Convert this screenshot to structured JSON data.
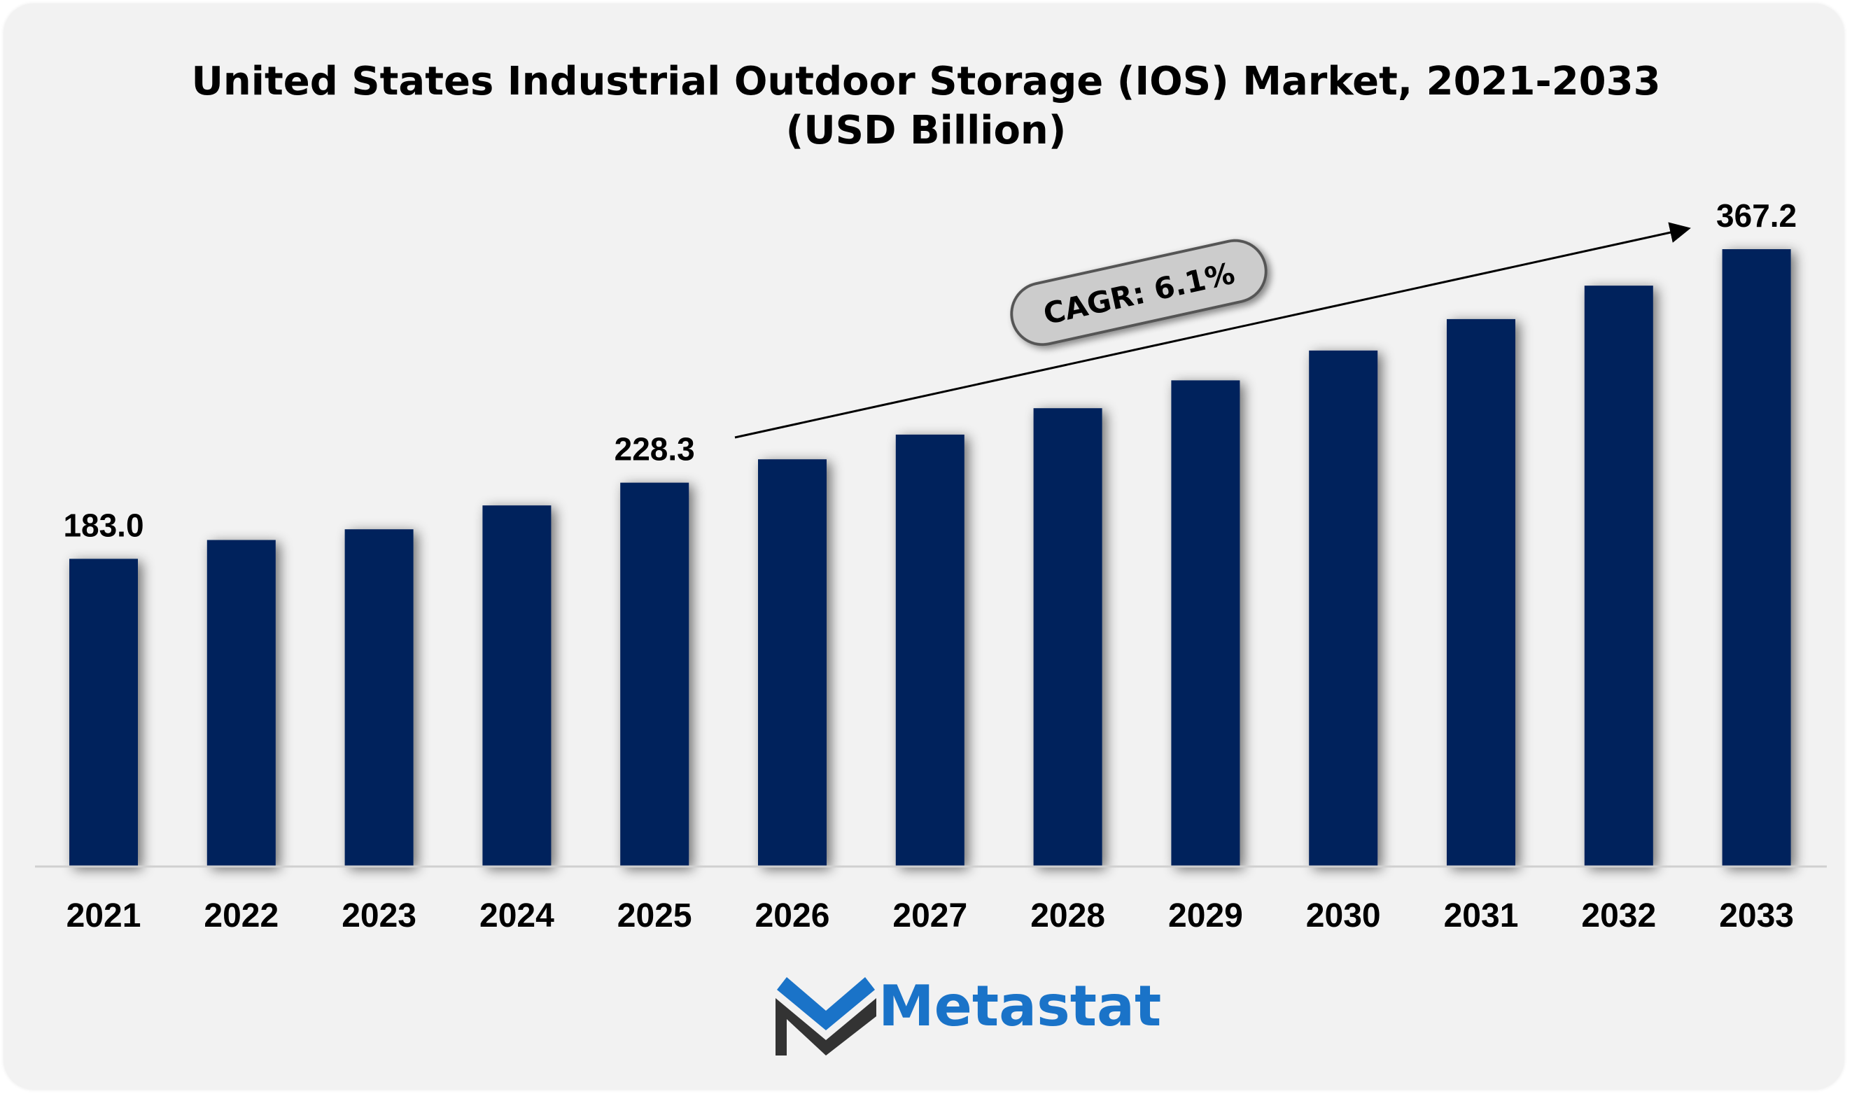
{
  "chart_data": {
    "type": "bar",
    "title": "United States Industrial Outdoor Storage (IOS) Market, 2021-2033",
    "subtitle": "(USD Billion)",
    "categories": [
      "2021",
      "2022",
      "2023",
      "2024",
      "2025",
      "2026",
      "2027",
      "2028",
      "2029",
      "2030",
      "2031",
      "2032",
      "2033"
    ],
    "values": [
      183.0,
      194.2,
      200.6,
      214.8,
      228.3,
      242.2,
      256.9,
      272.6,
      289.2,
      306.9,
      325.6,
      345.5,
      367.2
    ],
    "data_labels": [
      {
        "index": 0,
        "text": "183.0"
      },
      {
        "index": 4,
        "text": "228.3"
      },
      {
        "index": 12,
        "text": "367.2"
      }
    ],
    "annotation": "CAGR: 6.1%",
    "xlabel": "",
    "ylabel": "",
    "ylim": [
      0,
      367.2
    ],
    "grid": false,
    "bar_color": "#03205c"
  },
  "logo": {
    "text": "Metastat",
    "text_color": "#1a73c8",
    "mark_dark": "#333333",
    "mark_blue": "#1a73c8"
  }
}
